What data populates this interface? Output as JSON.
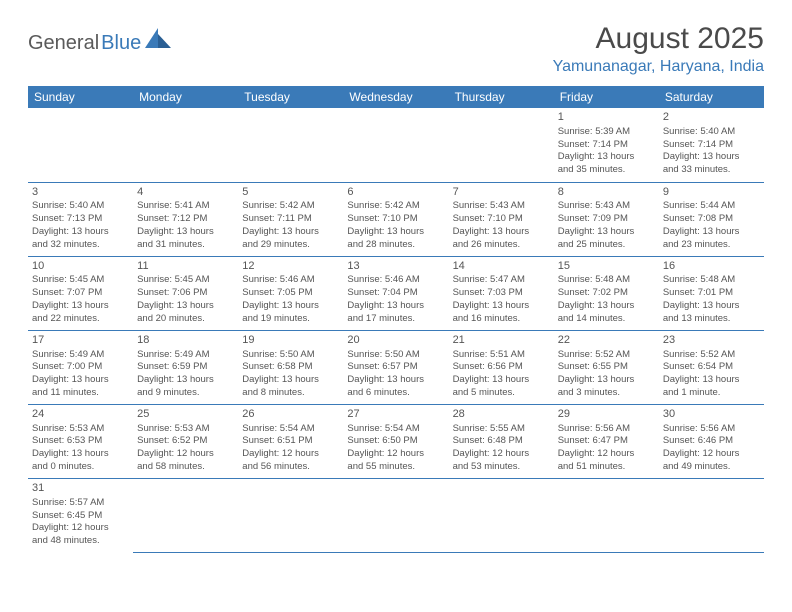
{
  "logo": {
    "text_general": "General",
    "text_blue": "Blue",
    "mark_color": "#3a7ab8"
  },
  "title": "August 2025",
  "location": "Yamunanagar, Haryana, India",
  "colors": {
    "header_bg": "#3a7ab8",
    "header_text": "#ffffff",
    "cell_border": "#3a7ab8",
    "body_text": "#555555",
    "page_bg": "#ffffff"
  },
  "typography": {
    "title_fontsize": 30,
    "location_fontsize": 16,
    "dayheader_fontsize": 12,
    "cell_fontsize": 9.5
  },
  "day_headers": [
    "Sunday",
    "Monday",
    "Tuesday",
    "Wednesday",
    "Thursday",
    "Friday",
    "Saturday"
  ],
  "weeks": [
    [
      null,
      null,
      null,
      null,
      null,
      {
        "n": "1",
        "sunrise": "Sunrise: 5:39 AM",
        "sunset": "Sunset: 7:14 PM",
        "d1": "Daylight: 13 hours",
        "d2": "and 35 minutes."
      },
      {
        "n": "2",
        "sunrise": "Sunrise: 5:40 AM",
        "sunset": "Sunset: 7:14 PM",
        "d1": "Daylight: 13 hours",
        "d2": "and 33 minutes."
      }
    ],
    [
      {
        "n": "3",
        "sunrise": "Sunrise: 5:40 AM",
        "sunset": "Sunset: 7:13 PM",
        "d1": "Daylight: 13 hours",
        "d2": "and 32 minutes."
      },
      {
        "n": "4",
        "sunrise": "Sunrise: 5:41 AM",
        "sunset": "Sunset: 7:12 PM",
        "d1": "Daylight: 13 hours",
        "d2": "and 31 minutes."
      },
      {
        "n": "5",
        "sunrise": "Sunrise: 5:42 AM",
        "sunset": "Sunset: 7:11 PM",
        "d1": "Daylight: 13 hours",
        "d2": "and 29 minutes."
      },
      {
        "n": "6",
        "sunrise": "Sunrise: 5:42 AM",
        "sunset": "Sunset: 7:10 PM",
        "d1": "Daylight: 13 hours",
        "d2": "and 28 minutes."
      },
      {
        "n": "7",
        "sunrise": "Sunrise: 5:43 AM",
        "sunset": "Sunset: 7:10 PM",
        "d1": "Daylight: 13 hours",
        "d2": "and 26 minutes."
      },
      {
        "n": "8",
        "sunrise": "Sunrise: 5:43 AM",
        "sunset": "Sunset: 7:09 PM",
        "d1": "Daylight: 13 hours",
        "d2": "and 25 minutes."
      },
      {
        "n": "9",
        "sunrise": "Sunrise: 5:44 AM",
        "sunset": "Sunset: 7:08 PM",
        "d1": "Daylight: 13 hours",
        "d2": "and 23 minutes."
      }
    ],
    [
      {
        "n": "10",
        "sunrise": "Sunrise: 5:45 AM",
        "sunset": "Sunset: 7:07 PM",
        "d1": "Daylight: 13 hours",
        "d2": "and 22 minutes."
      },
      {
        "n": "11",
        "sunrise": "Sunrise: 5:45 AM",
        "sunset": "Sunset: 7:06 PM",
        "d1": "Daylight: 13 hours",
        "d2": "and 20 minutes."
      },
      {
        "n": "12",
        "sunrise": "Sunrise: 5:46 AM",
        "sunset": "Sunset: 7:05 PM",
        "d1": "Daylight: 13 hours",
        "d2": "and 19 minutes."
      },
      {
        "n": "13",
        "sunrise": "Sunrise: 5:46 AM",
        "sunset": "Sunset: 7:04 PM",
        "d1": "Daylight: 13 hours",
        "d2": "and 17 minutes."
      },
      {
        "n": "14",
        "sunrise": "Sunrise: 5:47 AM",
        "sunset": "Sunset: 7:03 PM",
        "d1": "Daylight: 13 hours",
        "d2": "and 16 minutes."
      },
      {
        "n": "15",
        "sunrise": "Sunrise: 5:48 AM",
        "sunset": "Sunset: 7:02 PM",
        "d1": "Daylight: 13 hours",
        "d2": "and 14 minutes."
      },
      {
        "n": "16",
        "sunrise": "Sunrise: 5:48 AM",
        "sunset": "Sunset: 7:01 PM",
        "d1": "Daylight: 13 hours",
        "d2": "and 13 minutes."
      }
    ],
    [
      {
        "n": "17",
        "sunrise": "Sunrise: 5:49 AM",
        "sunset": "Sunset: 7:00 PM",
        "d1": "Daylight: 13 hours",
        "d2": "and 11 minutes."
      },
      {
        "n": "18",
        "sunrise": "Sunrise: 5:49 AM",
        "sunset": "Sunset: 6:59 PM",
        "d1": "Daylight: 13 hours",
        "d2": "and 9 minutes."
      },
      {
        "n": "19",
        "sunrise": "Sunrise: 5:50 AM",
        "sunset": "Sunset: 6:58 PM",
        "d1": "Daylight: 13 hours",
        "d2": "and 8 minutes."
      },
      {
        "n": "20",
        "sunrise": "Sunrise: 5:50 AM",
        "sunset": "Sunset: 6:57 PM",
        "d1": "Daylight: 13 hours",
        "d2": "and 6 minutes."
      },
      {
        "n": "21",
        "sunrise": "Sunrise: 5:51 AM",
        "sunset": "Sunset: 6:56 PM",
        "d1": "Daylight: 13 hours",
        "d2": "and 5 minutes."
      },
      {
        "n": "22",
        "sunrise": "Sunrise: 5:52 AM",
        "sunset": "Sunset: 6:55 PM",
        "d1": "Daylight: 13 hours",
        "d2": "and 3 minutes."
      },
      {
        "n": "23",
        "sunrise": "Sunrise: 5:52 AM",
        "sunset": "Sunset: 6:54 PM",
        "d1": "Daylight: 13 hours",
        "d2": "and 1 minute."
      }
    ],
    [
      {
        "n": "24",
        "sunrise": "Sunrise: 5:53 AM",
        "sunset": "Sunset: 6:53 PM",
        "d1": "Daylight: 13 hours",
        "d2": "and 0 minutes."
      },
      {
        "n": "25",
        "sunrise": "Sunrise: 5:53 AM",
        "sunset": "Sunset: 6:52 PM",
        "d1": "Daylight: 12 hours",
        "d2": "and 58 minutes."
      },
      {
        "n": "26",
        "sunrise": "Sunrise: 5:54 AM",
        "sunset": "Sunset: 6:51 PM",
        "d1": "Daylight: 12 hours",
        "d2": "and 56 minutes."
      },
      {
        "n": "27",
        "sunrise": "Sunrise: 5:54 AM",
        "sunset": "Sunset: 6:50 PM",
        "d1": "Daylight: 12 hours",
        "d2": "and 55 minutes."
      },
      {
        "n": "28",
        "sunrise": "Sunrise: 5:55 AM",
        "sunset": "Sunset: 6:48 PM",
        "d1": "Daylight: 12 hours",
        "d2": "and 53 minutes."
      },
      {
        "n": "29",
        "sunrise": "Sunrise: 5:56 AM",
        "sunset": "Sunset: 6:47 PM",
        "d1": "Daylight: 12 hours",
        "d2": "and 51 minutes."
      },
      {
        "n": "30",
        "sunrise": "Sunrise: 5:56 AM",
        "sunset": "Sunset: 6:46 PM",
        "d1": "Daylight: 12 hours",
        "d2": "and 49 minutes."
      }
    ],
    [
      {
        "n": "31",
        "sunrise": "Sunrise: 5:57 AM",
        "sunset": "Sunset: 6:45 PM",
        "d1": "Daylight: 12 hours",
        "d2": "and 48 minutes."
      },
      null,
      null,
      null,
      null,
      null,
      null
    ]
  ]
}
